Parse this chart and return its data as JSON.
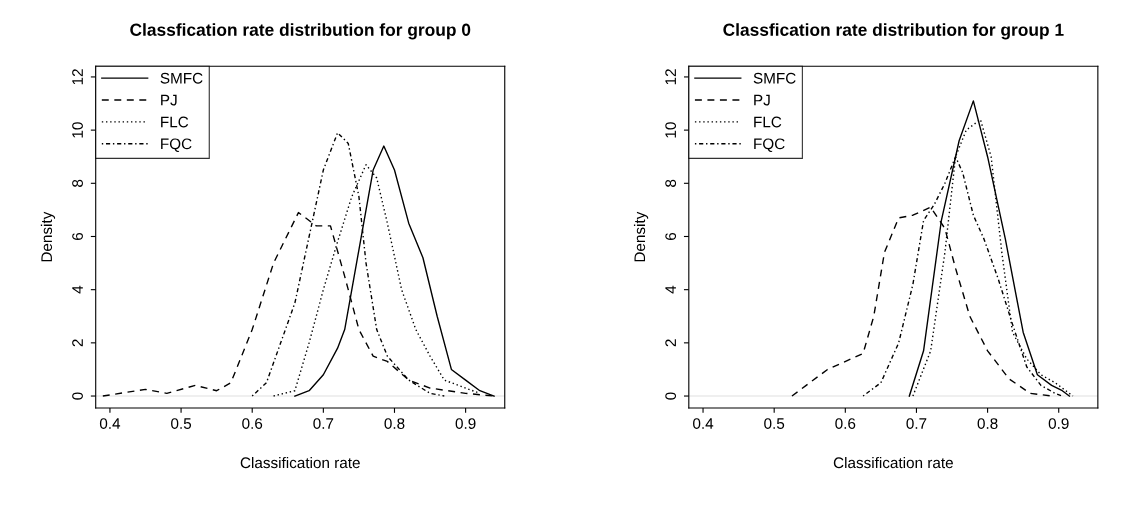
{
  "chart_data": [
    {
      "type": "line",
      "title": "Classfication rate distribution for group 0",
      "xlabel": "Classification rate",
      "ylabel": "Density",
      "xlim": [
        0.38,
        0.955
      ],
      "ylim": [
        -0.45,
        12.4
      ],
      "xticks": [
        0.4,
        0.5,
        0.6,
        0.7,
        0.8,
        0.9
      ],
      "yticks": [
        0,
        2,
        4,
        6,
        8,
        10,
        12
      ],
      "legend": "top left",
      "grid": false,
      "ref_lines": [
        {
          "axis": "y",
          "value": 0,
          "color": "#e0e0e0",
          "line_style": "solid"
        }
      ],
      "series": [
        {
          "name": "SMFC",
          "color": "#000000",
          "line_style": "solid",
          "x": [
            0.66,
            0.68,
            0.7,
            0.72,
            0.73,
            0.75,
            0.77,
            0.785,
            0.8,
            0.82,
            0.84,
            0.86,
            0.88,
            0.9,
            0.92,
            0.94
          ],
          "values": [
            0,
            0.2,
            0.8,
            1.8,
            2.5,
            5.5,
            8.5,
            9.4,
            8.5,
            6.5,
            5.2,
            3.0,
            1.0,
            0.6,
            0.2,
            0
          ]
        },
        {
          "name": "PJ",
          "color": "#000000",
          "line_style": "dashed",
          "x": [
            0.39,
            0.45,
            0.48,
            0.52,
            0.55,
            0.57,
            0.6,
            0.63,
            0.665,
            0.69,
            0.71,
            0.73,
            0.75,
            0.77,
            0.79,
            0.82,
            0.85,
            0.9,
            0.94
          ],
          "values": [
            0,
            0.25,
            0.1,
            0.4,
            0.2,
            0.5,
            2.5,
            5.0,
            6.9,
            6.4,
            6.4,
            4.5,
            2.5,
            1.5,
            1.3,
            0.6,
            0.3,
            0.1,
            0
          ]
        },
        {
          "name": "FLC",
          "color": "#000000",
          "line_style": "dotted",
          "x": [
            0.63,
            0.66,
            0.68,
            0.7,
            0.72,
            0.74,
            0.76,
            0.775,
            0.79,
            0.81,
            0.83,
            0.85,
            0.87,
            0.89,
            0.92
          ],
          "values": [
            0,
            0.2,
            2.0,
            4.0,
            5.8,
            7.5,
            8.7,
            8.2,
            6.5,
            4.0,
            2.5,
            1.5,
            0.6,
            0.4,
            0.1
          ]
        },
        {
          "name": "FQC",
          "color": "#000000",
          "line_style": "dashdot",
          "x": [
            0.6,
            0.62,
            0.64,
            0.66,
            0.68,
            0.7,
            0.72,
            0.735,
            0.75,
            0.76,
            0.775,
            0.79,
            0.82,
            0.85,
            0.87
          ],
          "values": [
            0,
            0.5,
            2.0,
            3.5,
            6.0,
            8.5,
            9.9,
            9.5,
            7.5,
            5.0,
            2.5,
            1.5,
            0.6,
            0.1,
            0
          ]
        }
      ]
    },
    {
      "type": "line",
      "title": "Classfication rate distribution for group 1",
      "xlabel": "Classification rate",
      "ylabel": "Density",
      "xlim": [
        0.38,
        0.955
      ],
      "ylim": [
        -0.45,
        12.4
      ],
      "xticks": [
        0.4,
        0.5,
        0.6,
        0.7,
        0.8,
        0.9
      ],
      "yticks": [
        0,
        2,
        4,
        6,
        8,
        10,
        12
      ],
      "legend": "top left",
      "grid": false,
      "ref_lines": [
        {
          "axis": "y",
          "value": 0,
          "color": "#e0e0e0",
          "line_style": "solid"
        }
      ],
      "series": [
        {
          "name": "SMFC",
          "color": "#000000",
          "line_style": "solid",
          "x": [
            0.69,
            0.71,
            0.735,
            0.76,
            0.78,
            0.8,
            0.825,
            0.85,
            0.87,
            0.89,
            0.905,
            0.915
          ],
          "values": [
            0,
            1.7,
            6.6,
            9.6,
            11.1,
            9.0,
            5.9,
            2.4,
            0.8,
            0.4,
            0.2,
            0
          ]
        },
        {
          "name": "PJ",
          "color": "#000000",
          "line_style": "dashed",
          "x": [
            0.525,
            0.545,
            0.575,
            0.625,
            0.64,
            0.655,
            0.675,
            0.695,
            0.72,
            0.74,
            0.755,
            0.775,
            0.8,
            0.83,
            0.86,
            0.89
          ],
          "values": [
            0,
            0.4,
            1.0,
            1.6,
            3.0,
            5.4,
            6.7,
            6.8,
            7.1,
            6.3,
            4.8,
            3.0,
            1.7,
            0.65,
            0.1,
            0
          ]
        },
        {
          "name": "FLC",
          "color": "#000000",
          "line_style": "dotted",
          "x": [
            0.695,
            0.72,
            0.74,
            0.755,
            0.77,
            0.79,
            0.805,
            0.82,
            0.835,
            0.855,
            0.875,
            0.895,
            0.91,
            0.92
          ],
          "values": [
            0,
            1.7,
            5.4,
            9.0,
            10.0,
            10.4,
            9.0,
            5.4,
            2.4,
            1.4,
            0.8,
            0.5,
            0.2,
            0
          ]
        },
        {
          "name": "FQC",
          "color": "#000000",
          "line_style": "dashdot",
          "x": [
            0.625,
            0.65,
            0.675,
            0.695,
            0.71,
            0.725,
            0.74,
            0.755,
            0.765,
            0.78,
            0.795,
            0.815,
            0.835,
            0.855,
            0.875,
            0.895,
            0.905
          ],
          "values": [
            0,
            0.5,
            2.0,
            4.2,
            6.6,
            7.2,
            8.0,
            9.0,
            8.4,
            6.8,
            5.9,
            4.4,
            2.7,
            1.1,
            0.4,
            0.1,
            0
          ]
        }
      ]
    }
  ]
}
